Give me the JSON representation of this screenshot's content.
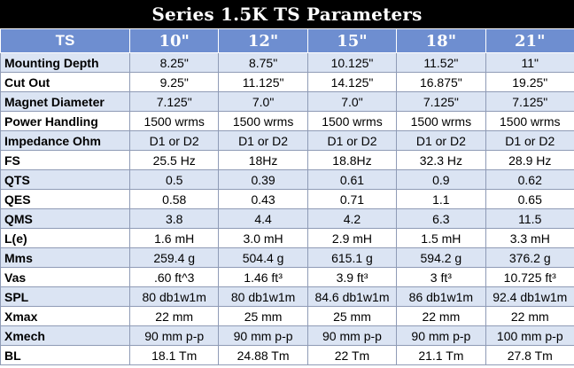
{
  "title": "Series 1.5K TS Parameters",
  "header": [
    "TS",
    "10\"",
    "12\"",
    "15\"",
    "18\"",
    "21\""
  ],
  "rows": [
    [
      "Mounting Depth",
      "8.25\"",
      "8.75\"",
      "10.125\"",
      "11.52\"",
      "11\""
    ],
    [
      "Cut Out",
      "9.25\"",
      "11.125\"",
      "14.125\"",
      "16.875\"",
      "19.25\""
    ],
    [
      "Magnet Diameter",
      "7.125\"",
      "7.0\"",
      "7.0\"",
      "7.125\"",
      "7.125\""
    ],
    [
      "Power Handling",
      "1500 wrms",
      "1500 wrms",
      "1500 wrms",
      "1500 wrms",
      "1500 wrms"
    ],
    [
      "Impedance Ohm",
      "D1 or D2",
      "D1 or D2",
      "D1 or D2",
      "D1 or D2",
      "D1 or D2"
    ],
    [
      "FS",
      "25.5 Hz",
      "18Hz",
      "18.8Hz",
      "32.3 Hz",
      "28.9 Hz"
    ],
    [
      "QTS",
      "0.5",
      "0.39",
      "0.61",
      "0.9",
      "0.62"
    ],
    [
      "QES",
      "0.58",
      "0.43",
      "0.71",
      "1.1",
      "0.65"
    ],
    [
      "QMS",
      "3.8",
      "4.4",
      "4.2",
      "6.3",
      "11.5"
    ],
    [
      "L(e)",
      "1.6 mH",
      "3.0 mH",
      "2.9 mH",
      "1.5 mH",
      "3.3 mH"
    ],
    [
      "Mms",
      "259.4 g",
      "504.4 g",
      "615.1 g",
      "594.2 g",
      "376.2 g"
    ],
    [
      "Vas",
      ".60 ft^3",
      "1.46 ft³",
      "3.9 ft³",
      "3 ft³",
      "10.725 ft³"
    ],
    [
      "SPL",
      "80 db1w1m",
      "80 db1w1m",
      "84.6 db1w1m",
      "86 db1w1m",
      "92.4 db1w1m"
    ],
    [
      "Xmax",
      "22 mm",
      "25 mm",
      "25 mm",
      "22 mm",
      "22 mm"
    ],
    [
      "Xmech",
      "90 mm p-p",
      "90 mm p-p",
      "90 mm p-p",
      "90 mm p-p",
      "100 mm p-p"
    ],
    [
      "BL",
      "18.1 Tm",
      "24.88 Tm",
      "22 Tm",
      "21.1 Tm",
      "27.8 Tm"
    ]
  ]
}
